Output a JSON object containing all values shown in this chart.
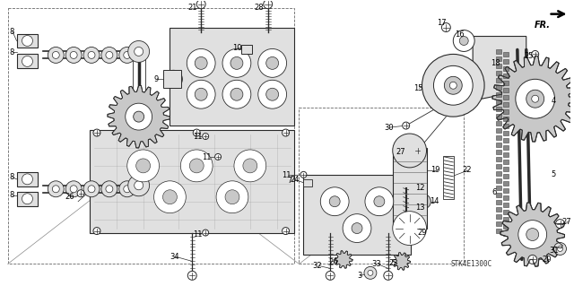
{
  "background_color": "#ffffff",
  "fig_width": 6.4,
  "fig_height": 3.19,
  "dpi": 100,
  "diagram_code": "STK4E1300C",
  "line_color": "#2a2a2a",
  "gray_fill": "#c8c8c8",
  "light_gray": "#e0e0e0",
  "white": "#ffffff",
  "label_fontsize": 6.0,
  "label_color": "#000000"
}
